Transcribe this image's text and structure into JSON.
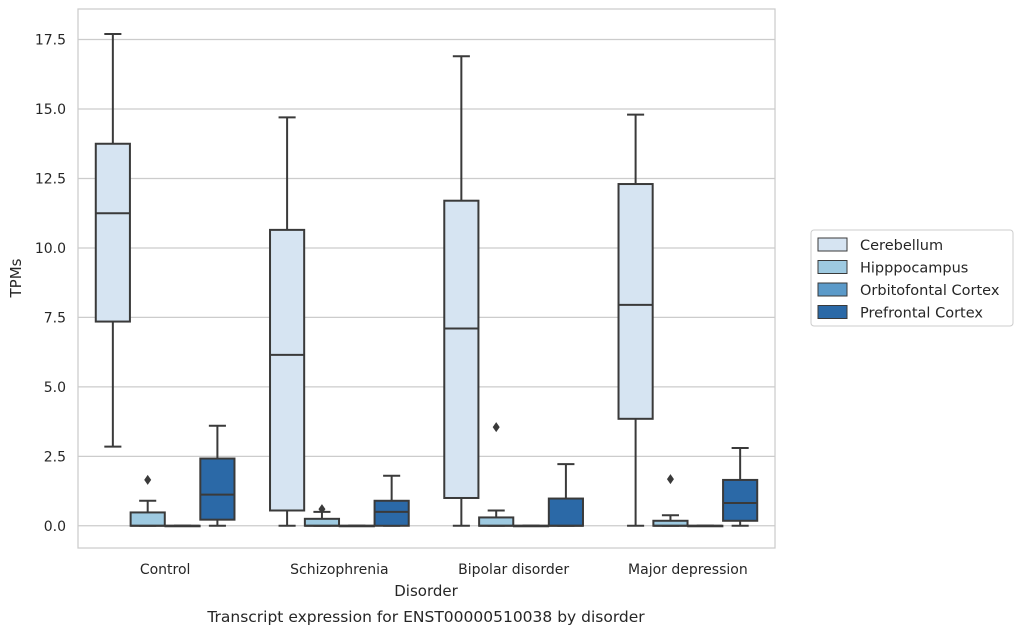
{
  "chart_data": {
    "type": "box",
    "title": "",
    "caption": "Transcript expression for ENST00000510038 by disorder",
    "xlabel": "Disorder",
    "ylabel": "TPMs",
    "ylim": [
      -0.8,
      18.6
    ],
    "yticks": [
      0.0,
      2.5,
      5.0,
      7.5,
      10.0,
      12.5,
      15.0,
      17.5
    ],
    "ytick_labels": [
      "0.0",
      "2.5",
      "5.0",
      "7.5",
      "10.0",
      "12.5",
      "15.0",
      "17.5"
    ],
    "grid": "horizontal",
    "legend_position": "right",
    "categories": [
      "Control",
      "Schizophrenia",
      "Bipolar disorder",
      "Major depression"
    ],
    "series": [
      {
        "name": "Cerebellum",
        "color": "#d6e4f2",
        "boxes": [
          {
            "min": 2.85,
            "q1": 7.35,
            "median": 11.25,
            "q3": 13.75,
            "max": 17.7,
            "outliers": []
          },
          {
            "min": 0.0,
            "q1": 0.55,
            "median": 6.15,
            "q3": 10.65,
            "max": 14.7,
            "outliers": []
          },
          {
            "min": 0.0,
            "q1": 1.0,
            "median": 7.1,
            "q3": 11.7,
            "max": 16.9,
            "outliers": []
          },
          {
            "min": 0.0,
            "q1": 3.85,
            "median": 7.95,
            "q3": 12.3,
            "max": 14.8,
            "outliers": []
          }
        ]
      },
      {
        "name": "Hipppocampus",
        "color": "#9ecae1",
        "boxes": [
          {
            "min": 0.0,
            "q1": 0.0,
            "median": 0.0,
            "q3": 0.48,
            "max": 0.9,
            "outliers": [
              1.65
            ]
          },
          {
            "min": 0.0,
            "q1": 0.0,
            "median": 0.0,
            "q3": 0.25,
            "max": 0.5,
            "outliers": [
              0.6
            ]
          },
          {
            "min": 0.0,
            "q1": 0.0,
            "median": 0.0,
            "q3": 0.3,
            "max": 0.55,
            "outliers": [
              3.55
            ]
          },
          {
            "min": 0.0,
            "q1": 0.0,
            "median": 0.0,
            "q3": 0.18,
            "max": 0.38,
            "outliers": [
              1.68
            ]
          }
        ]
      },
      {
        "name": "Orbitofontal Cortex",
        "color": "#5b9ac9",
        "boxes": [
          {
            "min": 0.0,
            "q1": 0.0,
            "median": 0.0,
            "q3": 0.0,
            "max": 0.0,
            "outliers": []
          },
          {
            "min": 0.0,
            "q1": 0.0,
            "median": 0.0,
            "q3": 0.0,
            "max": 0.0,
            "outliers": []
          },
          {
            "min": 0.0,
            "q1": 0.0,
            "median": 0.0,
            "q3": 0.0,
            "max": 0.0,
            "outliers": []
          },
          {
            "min": 0.0,
            "q1": 0.0,
            "median": 0.0,
            "q3": 0.0,
            "max": 0.0,
            "outliers": []
          }
        ]
      },
      {
        "name": "Prefrontal Cortex",
        "color": "#2b69a7",
        "boxes": [
          {
            "min": 0.0,
            "q1": 0.22,
            "median": 1.12,
            "q3": 2.42,
            "max": 3.6,
            "outliers": []
          },
          {
            "min": 0.0,
            "q1": 0.0,
            "median": 0.5,
            "q3": 0.9,
            "max": 1.8,
            "outliers": []
          },
          {
            "min": 0.0,
            "q1": 0.0,
            "median": 0.0,
            "q3": 0.98,
            "max": 2.22,
            "outliers": []
          },
          {
            "min": 0.0,
            "q1": 0.18,
            "median": 0.82,
            "q3": 1.65,
            "max": 2.8,
            "outliers": []
          }
        ]
      }
    ]
  }
}
